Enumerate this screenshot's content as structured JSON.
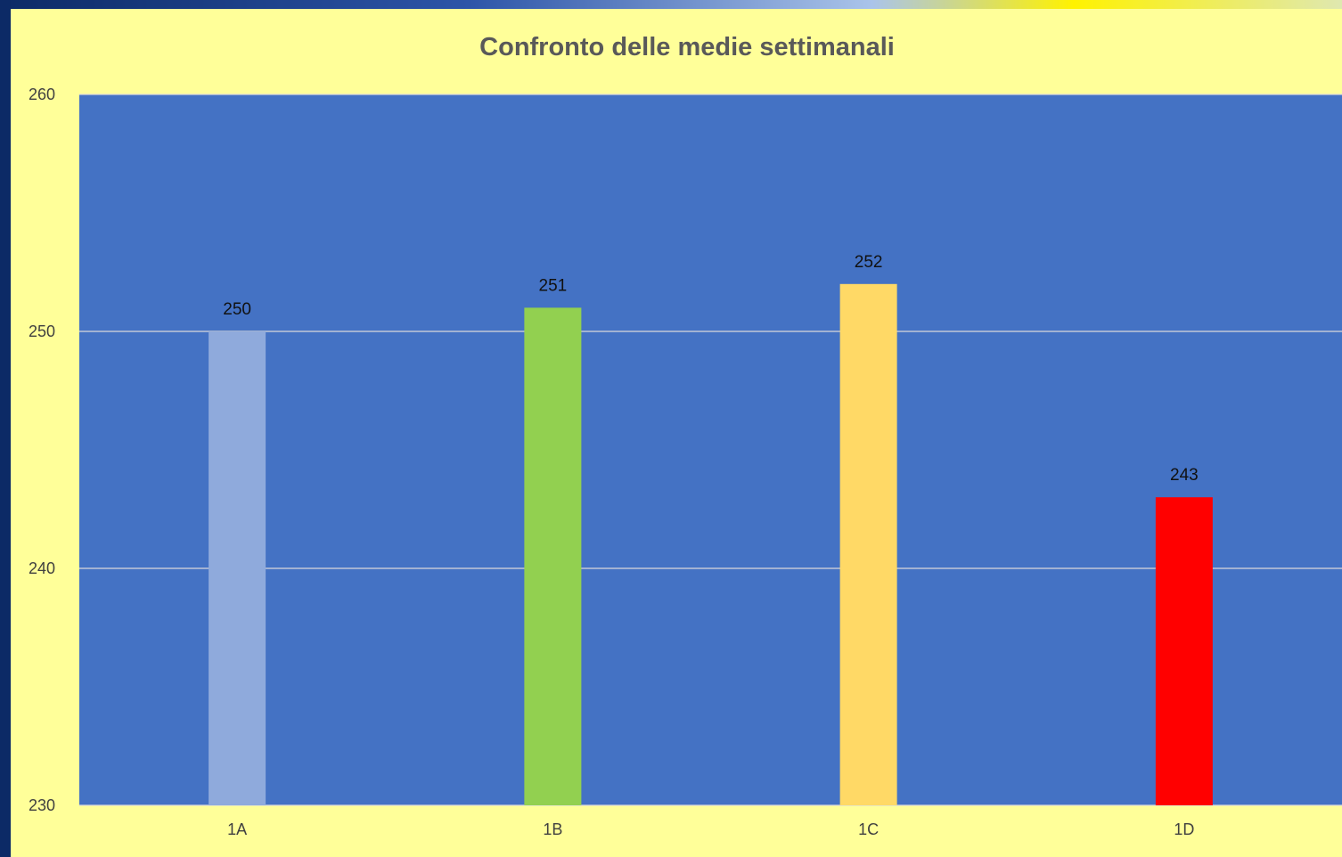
{
  "chart_data": {
    "type": "bar",
    "title": "Confronto delle medie settimanali",
    "xlabel": "",
    "ylabel": "",
    "categories": [
      "1A",
      "1B",
      "1C",
      "1D"
    ],
    "values": [
      250,
      251,
      252,
      243
    ],
    "data_labels": [
      "250",
      "251",
      "252",
      "243"
    ],
    "bar_colors": [
      "#8faadc",
      "#92d050",
      "#ffd966",
      "#ff0000"
    ],
    "ylim": [
      230,
      260
    ],
    "yticks": [
      230,
      240,
      250,
      260
    ],
    "ytick_labels": [
      "230",
      "240",
      "250",
      "260"
    ],
    "grid": true,
    "legend": "none",
    "plot_background": "#4472c4",
    "chart_background": "#ffff99",
    "gridline_color": "#d9d9d9"
  }
}
